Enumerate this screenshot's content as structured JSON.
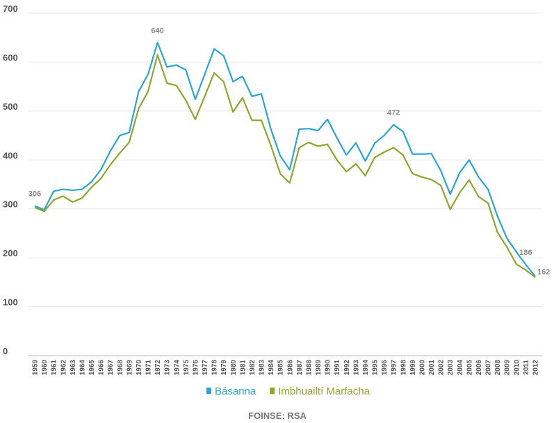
{
  "chart_data": {
    "type": "line",
    "categories": [
      "1959",
      "1960",
      "1961",
      "1962",
      "1963",
      "1964",
      "1965",
      "1966",
      "1967",
      "1968",
      "1969",
      "1970",
      "1971",
      "1972",
      "1973",
      "1974",
      "1975",
      "1976",
      "1977",
      "1978",
      "1979",
      "1980",
      "1981",
      "1982",
      "1983",
      "1984",
      "1985",
      "1986",
      "1987",
      "1988",
      "1989",
      "1990",
      "1991",
      "1992",
      "1993",
      "1994",
      "1995",
      "1996",
      "1997",
      "1998",
      "1999",
      "2000",
      "2001",
      "2002",
      "2003",
      "2004",
      "2005",
      "2006",
      "2007",
      "2008",
      "2009",
      "2010",
      "2011",
      "2012"
    ],
    "series": [
      {
        "name": "Básanna",
        "color": "#27a6d6",
        "values": [
          306,
          298,
          336,
          340,
          338,
          340,
          355,
          380,
          418,
          450,
          456,
          540,
          575,
          640,
          590,
          594,
          584,
          524,
          575,
          627,
          613,
          560,
          571,
          530,
          535,
          463,
          408,
          380,
          463,
          464,
          460,
          483,
          445,
          410,
          435,
          398,
          434,
          450,
          472,
          458,
          412,
          412,
          413,
          378,
          330,
          374,
          400,
          365,
          340,
          285,
          240,
          212,
          186,
          162
        ]
      },
      {
        "name": "Imbhuailtí Marfacha",
        "color": "#8fa62c",
        "values": [
          303,
          295,
          318,
          326,
          314,
          322,
          344,
          362,
          390,
          414,
          436,
          505,
          540,
          615,
          557,
          552,
          522,
          483,
          530,
          578,
          560,
          498,
          527,
          481,
          481,
          430,
          372,
          353,
          425,
          436,
          428,
          432,
          400,
          376,
          392,
          368,
          405,
          416,
          425,
          410,
          372,
          365,
          360,
          348,
          299,
          333,
          359,
          325,
          312,
          252,
          222,
          187,
          175,
          160
        ]
      }
    ],
    "annotations": [
      {
        "label": "306",
        "category": "1959"
      },
      {
        "label": "640",
        "category": "1972"
      },
      {
        "label": "472",
        "category": "1997"
      },
      {
        "label": "186",
        "category": "2011"
      },
      {
        "label": "162",
        "category": "2012"
      }
    ],
    "ylim": [
      0,
      700
    ],
    "yticks": [
      0,
      100,
      200,
      300,
      400,
      500,
      600,
      700
    ],
    "grid": true,
    "source": "FOINSE: RSA"
  }
}
